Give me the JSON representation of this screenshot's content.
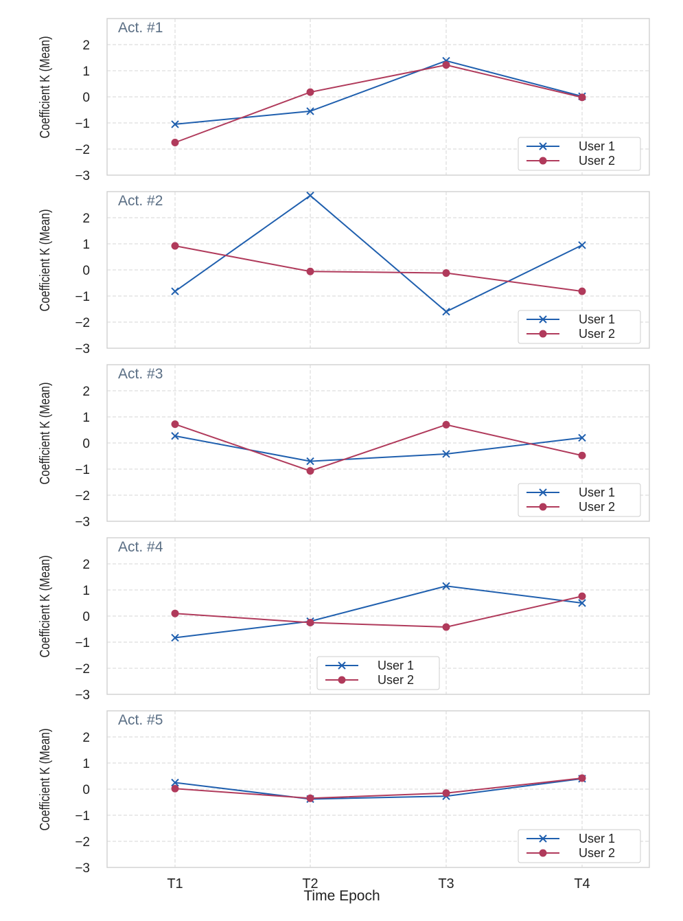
{
  "figure": {
    "xlabel": "Time Epoch",
    "ylabel": "Coefficient K (Mean)"
  },
  "colors": {
    "user1": "#1f5fae",
    "user2": "#b03a5b",
    "panel_title": "#5b6f85",
    "grid": "#d6d6d6",
    "frame": "#cfcfcf"
  },
  "chart_data": [
    {
      "type": "line",
      "title": "Act. #1",
      "categories": [
        "T1",
        "T2",
        "T3",
        "T4"
      ],
      "series": [
        {
          "name": "User 1",
          "marker": "x",
          "values": [
            -1.05,
            -0.55,
            1.38,
            0.02
          ]
        },
        {
          "name": "User 2",
          "marker": "o",
          "values": [
            -1.75,
            0.18,
            1.22,
            -0.02
          ]
        }
      ],
      "xlabel": "",
      "ylabel": "Coefficient K (Mean)",
      "yticks": [
        -3,
        -2,
        -1,
        0,
        1,
        2
      ],
      "ylim": [
        -3,
        3
      ],
      "grid": true,
      "legend": "lower-right"
    },
    {
      "type": "line",
      "title": "Act. #2",
      "categories": [
        "T1",
        "T2",
        "T3",
        "T4"
      ],
      "series": [
        {
          "name": "User 1",
          "marker": "x",
          "values": [
            -0.82,
            2.85,
            -1.6,
            0.95
          ]
        },
        {
          "name": "User 2",
          "marker": "o",
          "values": [
            0.92,
            -0.06,
            -0.12,
            -0.82
          ]
        }
      ],
      "xlabel": "",
      "ylabel": "Coefficient K (Mean)",
      "yticks": [
        -3,
        -2,
        -1,
        0,
        1,
        2
      ],
      "ylim": [
        -3,
        3
      ],
      "grid": true,
      "legend": "lower-right"
    },
    {
      "type": "line",
      "title": "Act. #3",
      "categories": [
        "T1",
        "T2",
        "T3",
        "T4"
      ],
      "series": [
        {
          "name": "User 1",
          "marker": "x",
          "values": [
            0.27,
            -0.7,
            -0.42,
            0.2
          ]
        },
        {
          "name": "User 2",
          "marker": "o",
          "values": [
            0.72,
            -1.07,
            0.7,
            -0.48
          ]
        }
      ],
      "xlabel": "",
      "ylabel": "Coefficient K (Mean)",
      "yticks": [
        -3,
        -2,
        -1,
        0,
        1,
        2
      ],
      "ylim": [
        -3,
        3
      ],
      "grid": true,
      "legend": "lower-right"
    },
    {
      "type": "line",
      "title": "Act. #4",
      "categories": [
        "T1",
        "T2",
        "T3",
        "T4"
      ],
      "series": [
        {
          "name": "User 1",
          "marker": "x",
          "values": [
            -0.83,
            -0.2,
            1.15,
            0.5
          ]
        },
        {
          "name": "User 2",
          "marker": "o",
          "values": [
            0.1,
            -0.25,
            -0.42,
            0.76
          ]
        }
      ],
      "xlabel": "",
      "ylabel": "Coefficient K (Mean)",
      "yticks": [
        -3,
        -2,
        -1,
        0,
        1,
        2
      ],
      "ylim": [
        -3,
        3
      ],
      "grid": true,
      "legend": "lower-center"
    },
    {
      "type": "line",
      "title": "Act. #5",
      "categories": [
        "T1",
        "T2",
        "T3",
        "T4"
      ],
      "series": [
        {
          "name": "User 1",
          "marker": "x",
          "values": [
            0.25,
            -0.38,
            -0.27,
            0.4
          ]
        },
        {
          "name": "User 2",
          "marker": "o",
          "values": [
            0.02,
            -0.35,
            -0.15,
            0.42
          ]
        }
      ],
      "xlabel": "Time Epoch",
      "ylabel": "Coefficient K (Mean)",
      "yticks": [
        -3,
        -2,
        -1,
        0,
        1,
        2
      ],
      "ylim": [
        -3,
        3
      ],
      "grid": true,
      "legend": "lower-right"
    }
  ]
}
